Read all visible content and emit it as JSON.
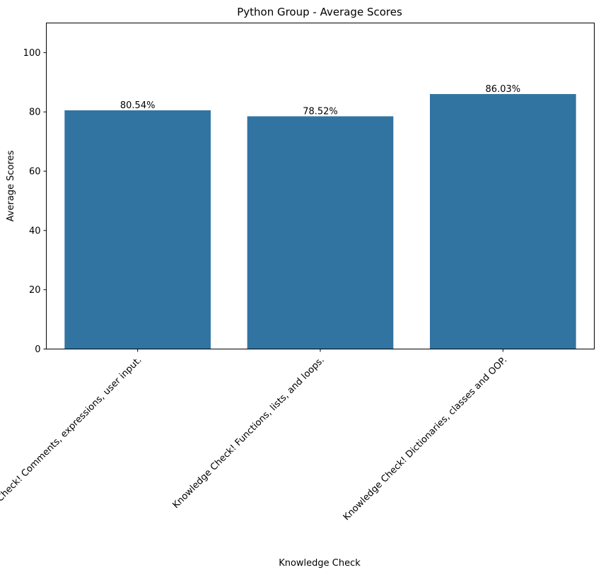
{
  "chart_data": {
    "type": "bar",
    "title": "Python Group - Average Scores",
    "xlabel": "Knowledge Check",
    "ylabel": "Average Scores",
    "categories": [
      "Knowledge Check! Comments, expressions, user input.",
      "Knowledge Check! Functions, lists, and loops.",
      "Knowledge Check! Dictionaries, classes and OOP."
    ],
    "values": [
      80.54,
      78.52,
      86.03
    ],
    "data_labels": [
      "80.54%",
      "78.52%",
      "86.03%"
    ],
    "ylim": [
      0,
      110
    ],
    "yticks": [
      0,
      20,
      40,
      60,
      80,
      100
    ],
    "grid": false,
    "bar_color": "#3274a1"
  }
}
